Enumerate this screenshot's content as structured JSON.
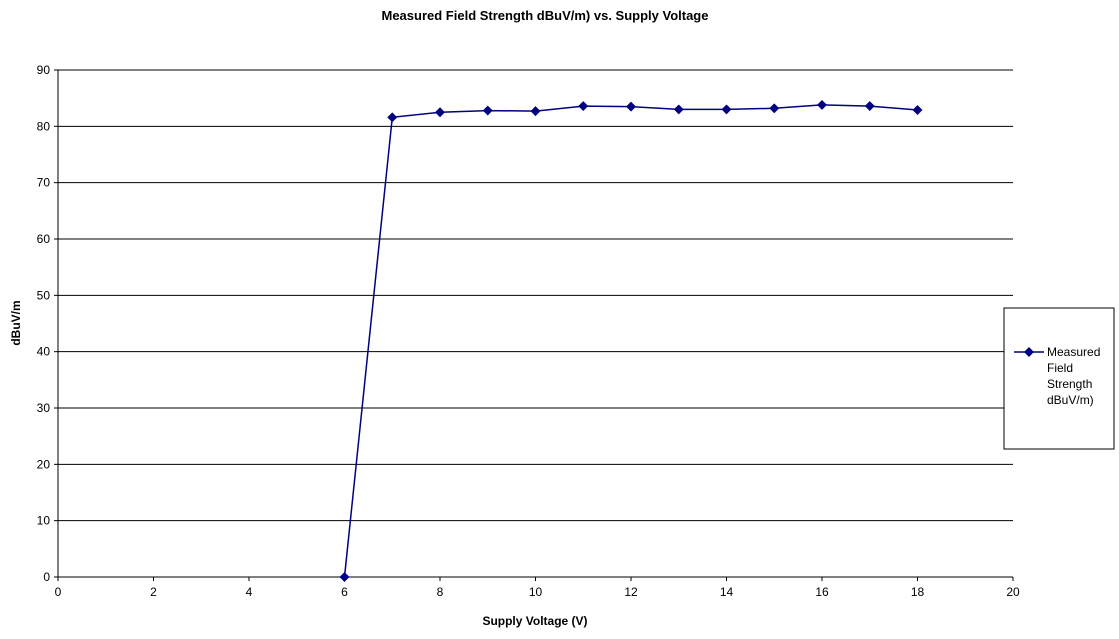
{
  "chart_data": {
    "type": "line",
    "title": "Measured Field Strength dBuV/m) vs. Supply Voltage",
    "xlabel": "Supply Voltage (V)",
    "ylabel": "dBuV/m",
    "xlim": [
      0,
      20
    ],
    "ylim": [
      0,
      90
    ],
    "x_ticks": [
      0,
      2,
      4,
      6,
      8,
      10,
      12,
      14,
      16,
      18,
      20
    ],
    "y_ticks": [
      0,
      10,
      20,
      30,
      40,
      50,
      60,
      70,
      80,
      90
    ],
    "grid": "horizontal",
    "legend_position": "right",
    "series": [
      {
        "name": "Measured Field Strength dBuV/m)",
        "legend_lines": [
          "Measured",
          "Field",
          "Strength",
          "dBuV/m)"
        ],
        "color": "#000080",
        "marker": "diamond",
        "x": [
          6,
          7,
          8,
          9,
          10,
          11,
          12,
          13,
          14,
          15,
          16,
          17,
          18
        ],
        "y": [
          0,
          81.6,
          82.5,
          82.8,
          82.7,
          83.6,
          83.5,
          83.0,
          83.0,
          83.2,
          83.8,
          83.6,
          82.9
        ]
      }
    ]
  }
}
